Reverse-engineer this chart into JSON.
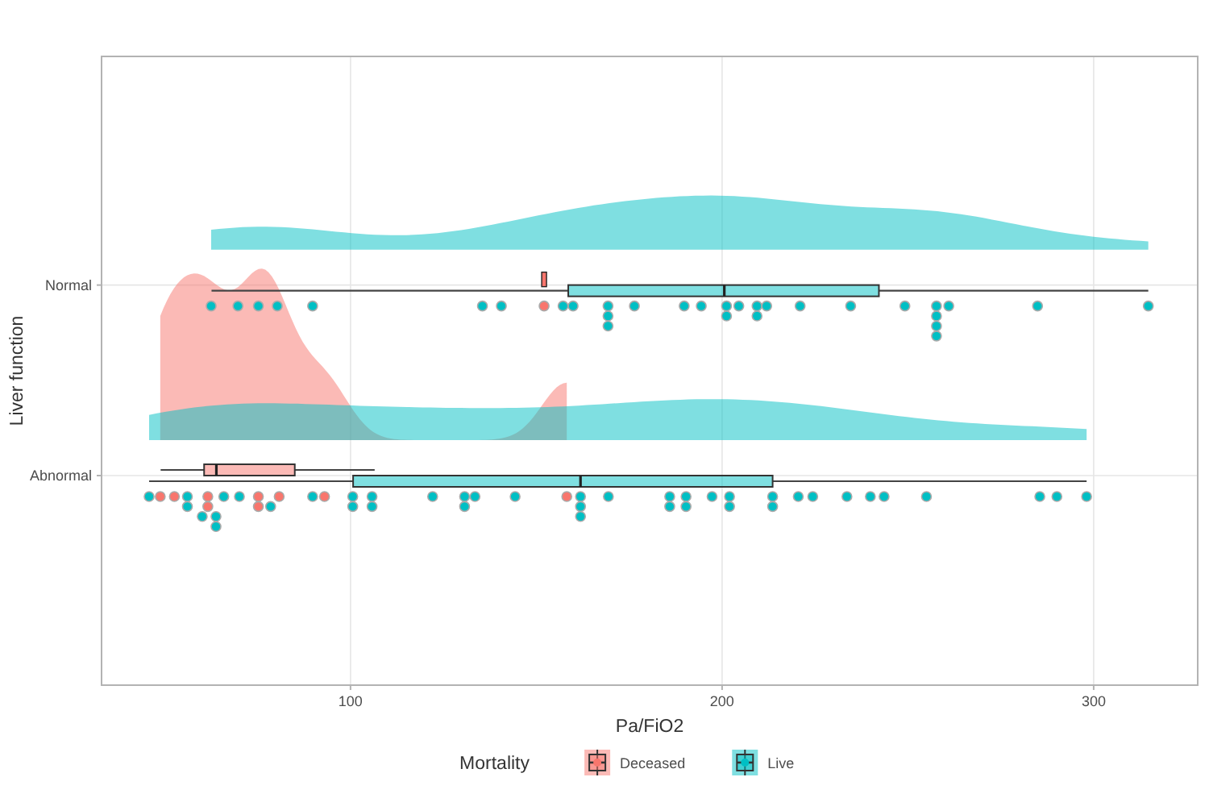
{
  "chart_data": {
    "type": "box",
    "orientation": "horizontal",
    "categories": [
      "Normal",
      "Abnormal"
    ],
    "xlabel": "Pa/FiO2",
    "ylabel": "Liver function",
    "legend_title": "Mortality",
    "legend": "bottom",
    "grid": true,
    "xlim": [
      33,
      328
    ],
    "xticks": [
      100,
      200,
      300
    ],
    "series": [
      {
        "name": "Deceased",
        "color": "#f8766d",
        "boxes": [
          {
            "low": 152.1,
            "q1": 152.1,
            "median": 152.1,
            "q3": 152.1,
            "high": 152.1
          },
          {
            "low": 48.9,
            "q1": 60.6,
            "median": 63.9,
            "q3": 85,
            "high": 106.5
          }
        ]
      },
      {
        "name": "Live",
        "color": "#00bfc4",
        "boxes": [
          {
            "low": 62.6,
            "q1": 158.6,
            "median": 200.6,
            "q3": 242.2,
            "high": 314.7
          },
          {
            "low": 45.8,
            "q1": 100.7,
            "median": 161.9,
            "q3": 213.6,
            "high": 298.1
          }
        ]
      },
      {
        "type": "scatter",
        "color": "#f8766d",
        "x": [
          "Normal",
          "Abnormal",
          "Abnormal",
          "Abnormal",
          "Abnormal",
          "Abnormal",
          "Abnormal",
          "Abnormal",
          "Abnormal",
          "Abnormal"
        ],
        "values": [
          152.1,
          48.8,
          52.6,
          61.6,
          61.6,
          75.2,
          75.2,
          80.8,
          93,
          158.2
        ]
      },
      {
        "type": "scatter",
        "color": "#00bfc4",
        "x": [
          "Normal",
          "Normal",
          "Normal",
          "Normal",
          "Normal",
          "Normal",
          "Normal",
          "Normal",
          "Normal",
          "Normal",
          "Normal",
          "Normal",
          "Normal",
          "Normal",
          "Normal",
          "Normal",
          "Normal",
          "Normal",
          "Normal",
          "Normal",
          "Normal",
          "Normal",
          "Normal",
          "Normal",
          "Normal",
          "Normal",
          "Normal",
          "Normal",
          "Normal",
          "Normal",
          "Normal",
          "Abnormal",
          "Abnormal",
          "Abnormal",
          "Abnormal",
          "Abnormal",
          "Abnormal",
          "Abnormal",
          "Abnormal",
          "Abnormal",
          "Abnormal",
          "Abnormal",
          "Abnormal",
          "Abnormal",
          "Abnormal",
          "Abnormal",
          "Abnormal",
          "Abnormal",
          "Abnormal",
          "Abnormal",
          "Abnormal",
          "Abnormal",
          "Abnormal",
          "Abnormal",
          "Abnormal",
          "Abnormal",
          "Abnormal",
          "Abnormal",
          "Abnormal",
          "Abnormal",
          "Abnormal",
          "Abnormal",
          "Abnormal",
          "Abnormal",
          "Abnormal",
          "Abnormal",
          "Abnormal",
          "Abnormal",
          "Abnormal",
          "Abnormal",
          "Abnormal",
          "Abnormal"
        ],
        "values": [
          62.5,
          69.7,
          75.2,
          80.3,
          89.8,
          135.5,
          140.6,
          157.2,
          159.9,
          169.3,
          169.3,
          169.3,
          176.4,
          189.8,
          194.4,
          201.2,
          201.2,
          204.5,
          209.4,
          209.4,
          212,
          221,
          234.6,
          249.2,
          257.7,
          257.7,
          257.7,
          257.7,
          261,
          284.9,
          314.7,
          45.8,
          56.1,
          56.1,
          60.1,
          63.8,
          63.8,
          65.9,
          70.1,
          78.5,
          89.8,
          100.6,
          100.6,
          105.8,
          105.8,
          122.1,
          130.7,
          130.7,
          133.5,
          144.3,
          161.9,
          161.9,
          161.9,
          169.4,
          185.9,
          185.9,
          190.3,
          190.3,
          197.3,
          202,
          202,
          213.6,
          213.6,
          220.5,
          224.4,
          233.6,
          239.9,
          243.6,
          255,
          285.5,
          290.1,
          298.1
        ]
      }
    ]
  }
}
